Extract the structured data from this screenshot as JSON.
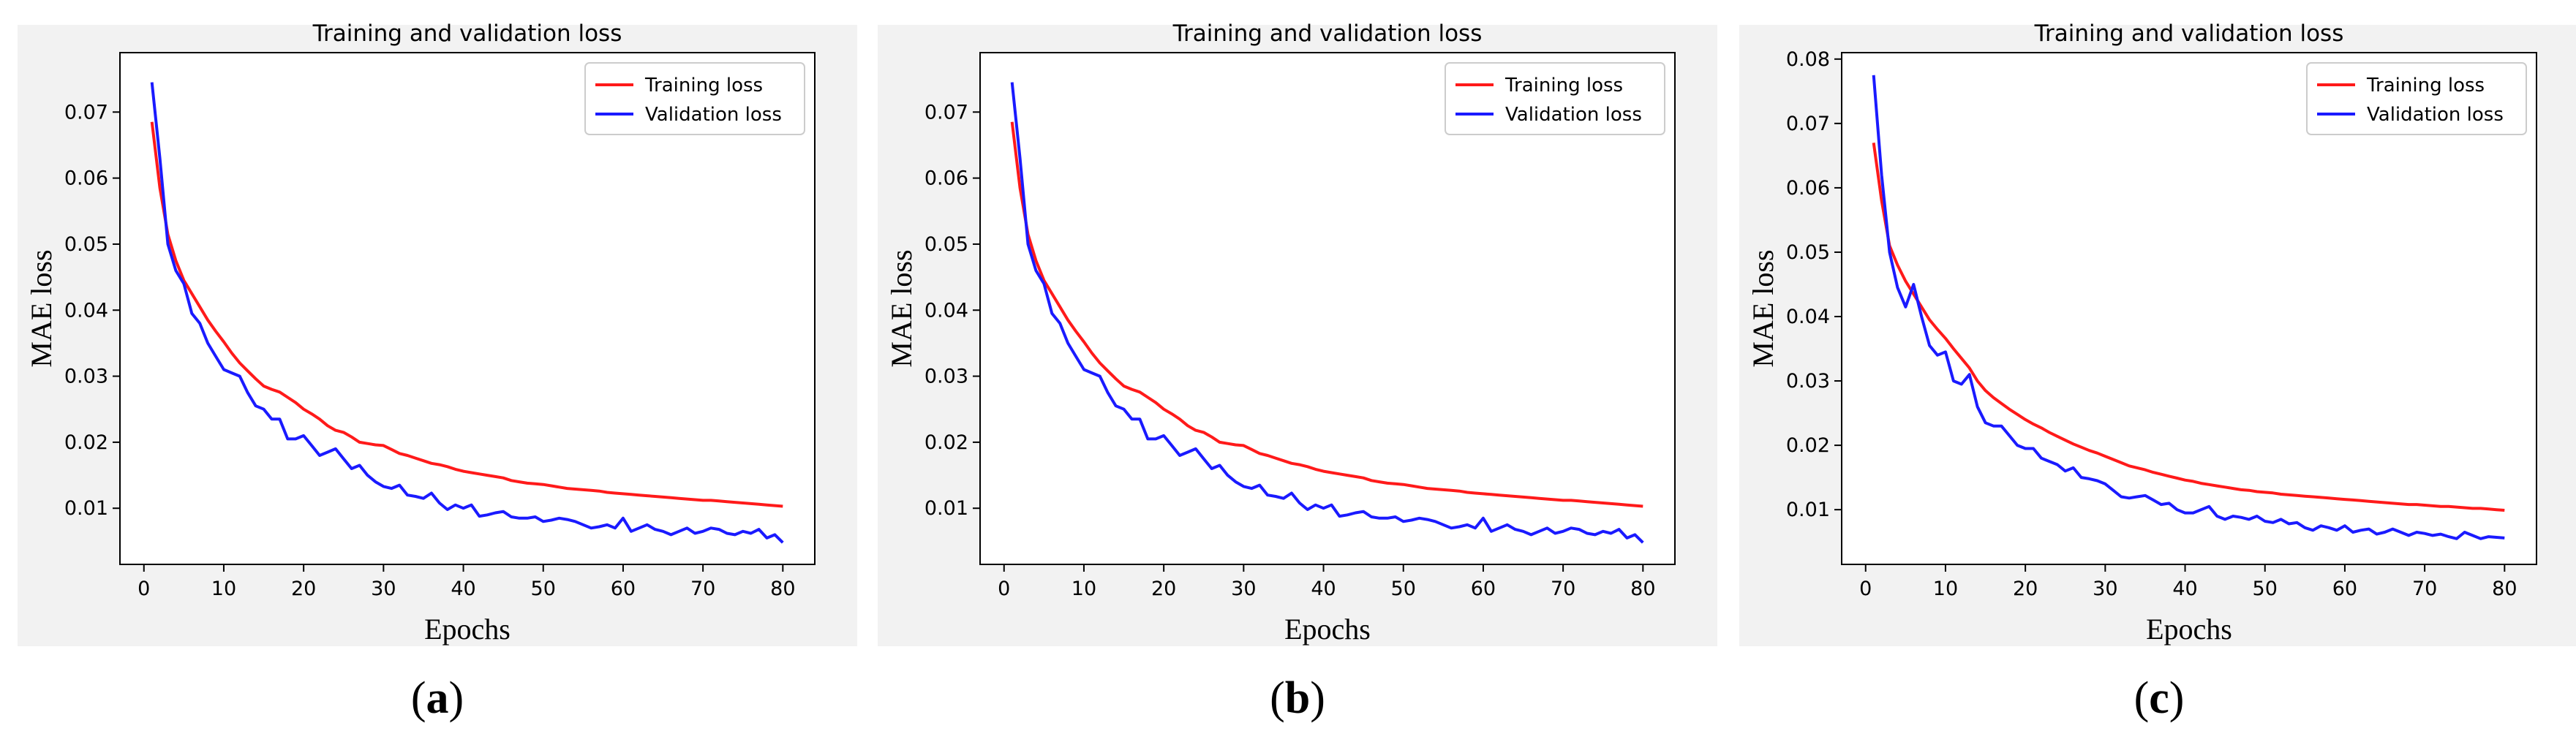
{
  "figure": {
    "captions": [
      {
        "open": "(",
        "letter": "a",
        "close": ")"
      },
      {
        "open": "(",
        "letter": "b",
        "close": ")"
      },
      {
        "open": "(",
        "letter": "c",
        "close": ")"
      }
    ]
  },
  "colors": {
    "training": "#ff1a1a",
    "validation": "#1a1aff",
    "axis": "#000000"
  },
  "chart_data": [
    {
      "type": "line",
      "title": "Training and validation loss",
      "xlabel": "Epochs",
      "ylabel": "MAE loss",
      "xlim": [
        -3,
        84
      ],
      "ylim": [
        0.0015,
        0.079
      ],
      "xticks": [
        0,
        10,
        20,
        30,
        40,
        50,
        60,
        70,
        80
      ],
      "yticks": [
        0.01,
        0.02,
        0.03,
        0.04,
        0.05,
        0.06,
        0.07
      ],
      "ytick_labels": [
        "0.01",
        "0.02",
        "0.03",
        "0.04",
        "0.05",
        "0.06",
        "0.07"
      ],
      "legend": {
        "position": "top-right",
        "entries": [
          "Training loss",
          "Validation loss"
        ]
      },
      "x": [
        1,
        2,
        3,
        4,
        5,
        6,
        7,
        8,
        9,
        10,
        11,
        12,
        13,
        14,
        15,
        16,
        17,
        18,
        19,
        20,
        21,
        22,
        23,
        24,
        25,
        26,
        27,
        28,
        29,
        30,
        31,
        32,
        33,
        34,
        35,
        36,
        37,
        38,
        39,
        40,
        41,
        42,
        43,
        44,
        45,
        46,
        47,
        48,
        49,
        50,
        51,
        52,
        53,
        54,
        55,
        56,
        57,
        58,
        59,
        60,
        61,
        62,
        63,
        64,
        65,
        66,
        67,
        68,
        69,
        70,
        71,
        72,
        73,
        74,
        75,
        76,
        77,
        78,
        79,
        80
      ],
      "series": [
        {
          "name": "Training loss",
          "values": [
            0.0685,
            0.0585,
            0.0515,
            0.0475,
            0.0445,
            0.0425,
            0.0405,
            0.0385,
            0.0368,
            0.0352,
            0.0335,
            0.032,
            0.0308,
            0.0296,
            0.0285,
            0.028,
            0.0276,
            0.0268,
            0.026,
            0.025,
            0.0243,
            0.0235,
            0.0225,
            0.0218,
            0.0215,
            0.0208,
            0.02,
            0.0198,
            0.0196,
            0.0195,
            0.0189,
            0.0183,
            0.018,
            0.0176,
            0.0172,
            0.0168,
            0.0166,
            0.0163,
            0.0159,
            0.0156,
            0.0154,
            0.0152,
            0.015,
            0.0148,
            0.0146,
            0.0142,
            0.014,
            0.0138,
            0.0137,
            0.0136,
            0.0134,
            0.0132,
            0.013,
            0.0129,
            0.0128,
            0.0127,
            0.0126,
            0.0124,
            0.0123,
            0.0122,
            0.0121,
            0.012,
            0.0119,
            0.0118,
            0.0117,
            0.0116,
            0.0115,
            0.0114,
            0.0113,
            0.0112,
            0.0112,
            0.0111,
            0.011,
            0.0109,
            0.0108,
            0.0107,
            0.0106,
            0.0105,
            0.0104,
            0.0103
          ]
        },
        {
          "name": "Validation loss",
          "values": [
            0.0745,
            0.063,
            0.05,
            0.046,
            0.044,
            0.0395,
            0.038,
            0.035,
            0.033,
            0.031,
            0.0305,
            0.03,
            0.0275,
            0.0255,
            0.025,
            0.0235,
            0.0235,
            0.0205,
            0.0205,
            0.021,
            0.0195,
            0.018,
            0.0185,
            0.019,
            0.0175,
            0.016,
            0.0165,
            0.015,
            0.014,
            0.0133,
            0.013,
            0.0135,
            0.012,
            0.0118,
            0.0115,
            0.0123,
            0.0108,
            0.0098,
            0.0105,
            0.01,
            0.0105,
            0.0088,
            0.009,
            0.0093,
            0.0095,
            0.0087,
            0.0085,
            0.0085,
            0.0087,
            0.008,
            0.0082,
            0.0085,
            0.0083,
            0.008,
            0.0075,
            0.007,
            0.0072,
            0.0075,
            0.007,
            0.0085,
            0.0065,
            0.007,
            0.0075,
            0.0068,
            0.0065,
            0.006,
            0.0065,
            0.007,
            0.0062,
            0.0065,
            0.007,
            0.0068,
            0.0062,
            0.006,
            0.0065,
            0.0062,
            0.0068,
            0.0055,
            0.006,
            0.0048
          ]
        }
      ]
    },
    {
      "type": "line",
      "title": "Training and validation loss",
      "xlabel": "Epochs",
      "ylabel": "MAE loss",
      "xlim": [
        -3,
        84
      ],
      "ylim": [
        0.0015,
        0.079
      ],
      "xticks": [
        0,
        10,
        20,
        30,
        40,
        50,
        60,
        70,
        80
      ],
      "yticks": [
        0.01,
        0.02,
        0.03,
        0.04,
        0.05,
        0.06,
        0.07
      ],
      "ytick_labels": [
        "0.01",
        "0.02",
        "0.03",
        "0.04",
        "0.05",
        "0.06",
        "0.07"
      ],
      "legend": {
        "position": "top-right",
        "entries": [
          "Training loss",
          "Validation loss"
        ]
      },
      "x": [
        1,
        2,
        3,
        4,
        5,
        6,
        7,
        8,
        9,
        10,
        11,
        12,
        13,
        14,
        15,
        16,
        17,
        18,
        19,
        20,
        21,
        22,
        23,
        24,
        25,
        26,
        27,
        28,
        29,
        30,
        31,
        32,
        33,
        34,
        35,
        36,
        37,
        38,
        39,
        40,
        41,
        42,
        43,
        44,
        45,
        46,
        47,
        48,
        49,
        50,
        51,
        52,
        53,
        54,
        55,
        56,
        57,
        58,
        59,
        60,
        61,
        62,
        63,
        64,
        65,
        66,
        67,
        68,
        69,
        70,
        71,
        72,
        73,
        74,
        75,
        76,
        77,
        78,
        79,
        80
      ],
      "series": [
        {
          "name": "Training loss",
          "values": [
            0.0685,
            0.0585,
            0.0515,
            0.0475,
            0.0445,
            0.0425,
            0.0405,
            0.0385,
            0.0368,
            0.0352,
            0.0335,
            0.032,
            0.0308,
            0.0296,
            0.0285,
            0.028,
            0.0276,
            0.0268,
            0.026,
            0.025,
            0.0243,
            0.0235,
            0.0225,
            0.0218,
            0.0215,
            0.0208,
            0.02,
            0.0198,
            0.0196,
            0.0195,
            0.0189,
            0.0183,
            0.018,
            0.0176,
            0.0172,
            0.0168,
            0.0166,
            0.0163,
            0.0159,
            0.0156,
            0.0154,
            0.0152,
            0.015,
            0.0148,
            0.0146,
            0.0142,
            0.014,
            0.0138,
            0.0137,
            0.0136,
            0.0134,
            0.0132,
            0.013,
            0.0129,
            0.0128,
            0.0127,
            0.0126,
            0.0124,
            0.0123,
            0.0122,
            0.0121,
            0.012,
            0.0119,
            0.0118,
            0.0117,
            0.0116,
            0.0115,
            0.0114,
            0.0113,
            0.0112,
            0.0112,
            0.0111,
            0.011,
            0.0109,
            0.0108,
            0.0107,
            0.0106,
            0.0105,
            0.0104,
            0.0103
          ]
        },
        {
          "name": "Validation loss",
          "values": [
            0.0745,
            0.063,
            0.05,
            0.046,
            0.044,
            0.0395,
            0.038,
            0.035,
            0.033,
            0.031,
            0.0305,
            0.03,
            0.0275,
            0.0255,
            0.025,
            0.0235,
            0.0235,
            0.0205,
            0.0205,
            0.021,
            0.0195,
            0.018,
            0.0185,
            0.019,
            0.0175,
            0.016,
            0.0165,
            0.015,
            0.014,
            0.0133,
            0.013,
            0.0135,
            0.012,
            0.0118,
            0.0115,
            0.0123,
            0.0108,
            0.0098,
            0.0105,
            0.01,
            0.0105,
            0.0088,
            0.009,
            0.0093,
            0.0095,
            0.0087,
            0.0085,
            0.0085,
            0.0087,
            0.008,
            0.0082,
            0.0085,
            0.0083,
            0.008,
            0.0075,
            0.007,
            0.0072,
            0.0075,
            0.007,
            0.0085,
            0.0065,
            0.007,
            0.0075,
            0.0068,
            0.0065,
            0.006,
            0.0065,
            0.007,
            0.0062,
            0.0065,
            0.007,
            0.0068,
            0.0062,
            0.006,
            0.0065,
            0.0062,
            0.0068,
            0.0055,
            0.006,
            0.0048
          ]
        }
      ]
    },
    {
      "type": "line",
      "title": "Training and validation loss",
      "xlabel": "Epochs",
      "ylabel": "MAE loss",
      "xlim": [
        -3,
        84
      ],
      "ylim": [
        0.0015,
        0.081
      ],
      "xticks": [
        0,
        10,
        20,
        30,
        40,
        50,
        60,
        70,
        80
      ],
      "yticks": [
        0.01,
        0.02,
        0.03,
        0.04,
        0.05,
        0.06,
        0.07,
        0.08
      ],
      "ytick_labels": [
        "0.01",
        "0.02",
        "0.03",
        "0.04",
        "0.05",
        "0.06",
        "0.07",
        "0.08"
      ],
      "legend": {
        "position": "top-right",
        "entries": [
          "Training loss",
          "Validation loss"
        ]
      },
      "x": [
        1,
        2,
        3,
        4,
        5,
        6,
        7,
        8,
        9,
        10,
        11,
        12,
        13,
        14,
        15,
        16,
        17,
        18,
        19,
        20,
        21,
        22,
        23,
        24,
        25,
        26,
        27,
        28,
        29,
        30,
        31,
        32,
        33,
        34,
        35,
        36,
        37,
        38,
        39,
        40,
        41,
        42,
        43,
        44,
        45,
        46,
        47,
        48,
        49,
        50,
        51,
        52,
        53,
        54,
        55,
        56,
        57,
        58,
        59,
        60,
        61,
        62,
        63,
        64,
        65,
        66,
        67,
        68,
        69,
        70,
        71,
        72,
        73,
        74,
        75,
        76,
        77,
        78,
        79,
        80
      ],
      "series": [
        {
          "name": "Training loss",
          "values": [
            0.067,
            0.058,
            0.051,
            0.048,
            0.0455,
            0.0435,
            0.0415,
            0.0395,
            0.038,
            0.0366,
            0.035,
            0.0335,
            0.032,
            0.03,
            0.0285,
            0.0274,
            0.0265,
            0.0256,
            0.0248,
            0.024,
            0.0233,
            0.0227,
            0.022,
            0.0214,
            0.0208,
            0.0202,
            0.0197,
            0.0192,
            0.0188,
            0.0183,
            0.0178,
            0.0173,
            0.0168,
            0.0165,
            0.0162,
            0.0158,
            0.0155,
            0.0152,
            0.0149,
            0.0146,
            0.0144,
            0.0141,
            0.0139,
            0.0137,
            0.0135,
            0.0133,
            0.0131,
            0.013,
            0.0128,
            0.0127,
            0.0126,
            0.0124,
            0.0123,
            0.0122,
            0.0121,
            0.012,
            0.0119,
            0.0118,
            0.0117,
            0.0116,
            0.0115,
            0.0114,
            0.0113,
            0.0112,
            0.0111,
            0.011,
            0.0109,
            0.0108,
            0.0108,
            0.0107,
            0.0106,
            0.0105,
            0.0105,
            0.0104,
            0.0103,
            0.0102,
            0.0102,
            0.0101,
            0.01,
            0.0099
          ]
        },
        {
          "name": "Validation loss",
          "values": [
            0.0775,
            0.062,
            0.05,
            0.0445,
            0.0415,
            0.045,
            0.04,
            0.0355,
            0.034,
            0.0345,
            0.03,
            0.0295,
            0.031,
            0.026,
            0.0235,
            0.023,
            0.023,
            0.0215,
            0.02,
            0.0195,
            0.0195,
            0.018,
            0.0175,
            0.017,
            0.016,
            0.0165,
            0.015,
            0.0148,
            0.0145,
            0.014,
            0.013,
            0.012,
            0.0118,
            0.012,
            0.0122,
            0.0115,
            0.0108,
            0.011,
            0.01,
            0.0095,
            0.0095,
            0.01,
            0.0105,
            0.009,
            0.0085,
            0.009,
            0.0088,
            0.0085,
            0.009,
            0.0082,
            0.008,
            0.0085,
            0.0078,
            0.008,
            0.0072,
            0.0068,
            0.0075,
            0.0072,
            0.0068,
            0.0075,
            0.0065,
            0.0068,
            0.007,
            0.0062,
            0.0065,
            0.007,
            0.0065,
            0.006,
            0.0065,
            0.0063,
            0.006,
            0.0062,
            0.0058,
            0.0055,
            0.0065,
            0.006,
            0.0055,
            0.0058,
            0.0057,
            0.0056
          ]
        }
      ]
    }
  ]
}
